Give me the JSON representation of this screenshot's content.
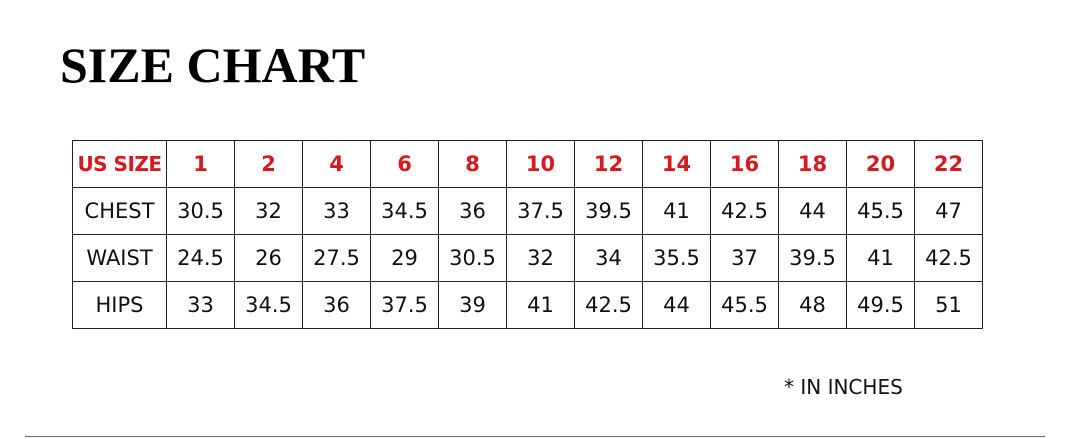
{
  "title": "SIZE CHART",
  "colors": {
    "header_text": "#d71920",
    "body_text": "#111111"
  },
  "table": {
    "header": {
      "label": "US SIZE",
      "sizes": [
        "1",
        "2",
        "4",
        "6",
        "8",
        "10",
        "12",
        "14",
        "16",
        "18",
        "20",
        "22"
      ]
    },
    "rows": [
      {
        "label": "CHEST",
        "values": [
          "30.5",
          "32",
          "33",
          "34.5",
          "36",
          "37.5",
          "39.5",
          "41",
          "42.5",
          "44",
          "45.5",
          "47"
        ]
      },
      {
        "label": "WAIST",
        "values": [
          "24.5",
          "26",
          "27.5",
          "29",
          "30.5",
          "32",
          "34",
          "35.5",
          "37",
          "39.5",
          "41",
          "42.5"
        ]
      },
      {
        "label": "HIPS",
        "values": [
          "33",
          "34.5",
          "36",
          "37.5",
          "39",
          "41",
          "42.5",
          "44",
          "45.5",
          "48",
          "49.5",
          "51"
        ]
      }
    ]
  },
  "note": "* IN INCHES"
}
